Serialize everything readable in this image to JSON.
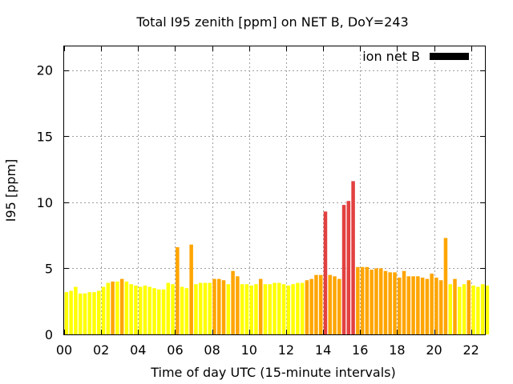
{
  "chart_data": {
    "type": "bar",
    "title": "Total I95 zenith [ppm] on NET B, DoY=243",
    "xlabel": "Time of day UTC (15-minute intervals)",
    "ylabel": "I95 [ppm]",
    "xlim": [
      0,
      22.75
    ],
    "ylim": [
      0,
      21.8
    ],
    "x_tick_labels": [
      "00",
      "02",
      "04",
      "06",
      "08",
      "10",
      "12",
      "14",
      "16",
      "18",
      "20",
      "22"
    ],
    "x_tick_values": [
      0,
      2,
      4,
      6,
      8,
      10,
      12,
      14,
      16,
      18,
      20,
      22
    ],
    "y_tick_labels": [
      "0",
      "5",
      "10",
      "15",
      "20"
    ],
    "y_tick_values": [
      0,
      5,
      10,
      15,
      20
    ],
    "grid": true,
    "legend": {
      "label": "ion net B",
      "color": "#000000",
      "position": "top-right"
    },
    "bar_interval_hours": 0.25,
    "bar_colors": {
      "low": "#ffff00",
      "mid": "#ffa500",
      "high": "#e24040"
    },
    "values": [
      3.2,
      3.3,
      3.6,
      3.1,
      3.1,
      3.2,
      3.2,
      3.3,
      3.6,
      3.9,
      4.0,
      4.0,
      4.2,
      4.0,
      3.8,
      3.7,
      3.6,
      3.7,
      3.6,
      3.5,
      3.4,
      3.4,
      3.9,
      3.8,
      6.6,
      3.6,
      3.5,
      6.8,
      3.8,
      3.9,
      3.9,
      3.9,
      4.2,
      4.2,
      4.1,
      3.8,
      4.8,
      4.4,
      3.8,
      3.8,
      3.7,
      3.8,
      4.2,
      3.8,
      3.8,
      3.9,
      3.9,
      3.8,
      3.7,
      3.8,
      3.9,
      3.9,
      4.1,
      4.2,
      4.5,
      4.5,
      9.3,
      4.5,
      4.4,
      4.2,
      9.8,
      10.1,
      11.6,
      5.1,
      5.1,
      5.1,
      4.9,
      5.0,
      5.0,
      4.8,
      4.7,
      4.7,
      4.3,
      4.8,
      4.4,
      4.4,
      4.4,
      4.3,
      4.2,
      4.6,
      4.3,
      4.1,
      7.3,
      3.8,
      4.2,
      3.6,
      3.8,
      4.1,
      3.7,
      3.6,
      3.8,
      3.7
    ],
    "levels": [
      "low",
      "low",
      "low",
      "low",
      "low",
      "low",
      "low",
      "low",
      "low",
      "low",
      "mid",
      "low",
      "mid",
      "low",
      "low",
      "low",
      "low",
      "low",
      "low",
      "low",
      "low",
      "low",
      "low",
      "low",
      "mid",
      "low",
      "low",
      "mid",
      "low",
      "low",
      "low",
      "low",
      "mid",
      "mid",
      "mid",
      "low",
      "mid",
      "mid",
      "low",
      "low",
      "low",
      "low",
      "mid",
      "low",
      "low",
      "low",
      "low",
      "low",
      "low",
      "low",
      "low",
      "low",
      "mid",
      "mid",
      "mid",
      "mid",
      "high",
      "mid",
      "mid",
      "mid",
      "high",
      "high",
      "high",
      "mid",
      "mid",
      "mid",
      "mid",
      "mid",
      "mid",
      "mid",
      "mid",
      "mid",
      "mid",
      "mid",
      "mid",
      "mid",
      "mid",
      "mid",
      "mid",
      "mid",
      "mid",
      "mid",
      "mid",
      "low",
      "mid",
      "low",
      "low",
      "mid",
      "low",
      "low",
      "low",
      "low"
    ]
  }
}
